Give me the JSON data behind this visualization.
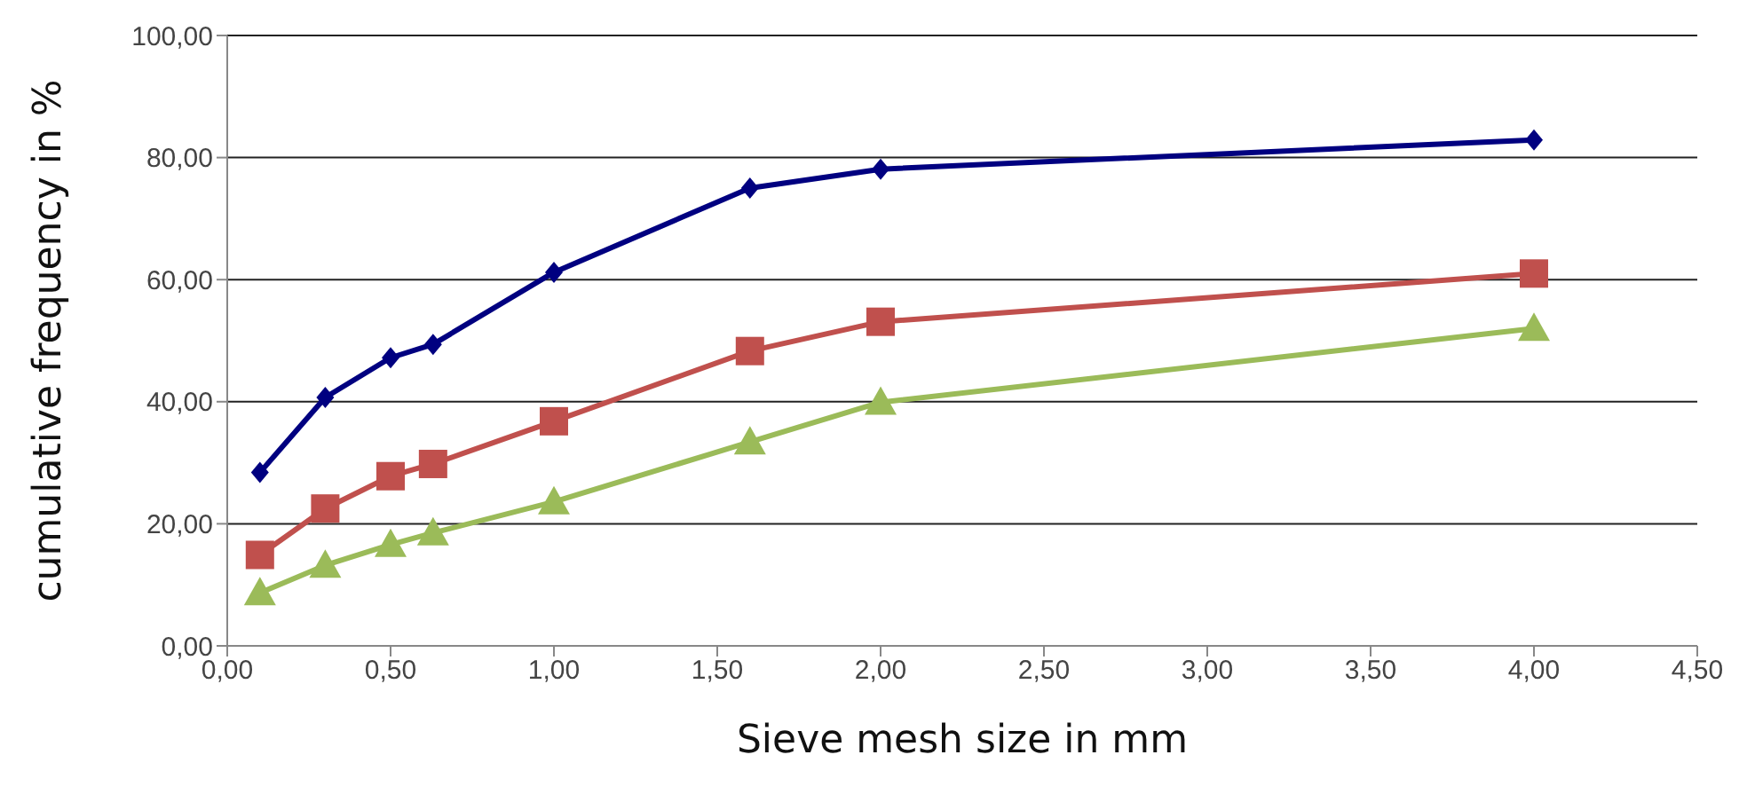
{
  "chart_data": {
    "type": "line",
    "xlabel": "Sieve mesh size in mm",
    "ylabel": "cumulative frequency in %",
    "x": [
      0.1,
      0.3,
      0.5,
      0.63,
      1.0,
      1.6,
      2.0,
      4.0
    ],
    "series": [
      {
        "color": "#000080",
        "marker": "diamond",
        "values": [
          28.4,
          40.7,
          47.2,
          49.4,
          61.2,
          75,
          78.1,
          82.9
        ]
      },
      {
        "color": "#c0504d",
        "marker": "square",
        "values": [
          14.9,
          22.5,
          27.8,
          29.8,
          36.8,
          48.3,
          53.1,
          61
        ]
      },
      {
        "color": "#9bbb59",
        "marker": "triangle",
        "values": [
          8.7,
          13.2,
          16.6,
          18.5,
          23.6,
          33.4,
          39.9,
          52
        ]
      }
    ],
    "xlim": [
      0,
      4.5
    ],
    "xticks": [
      {
        "value": 0,
        "label": "0,00"
      },
      {
        "value": 0.5,
        "label": "0,50"
      },
      {
        "value": 1,
        "label": "1,00"
      },
      {
        "value": 1.5,
        "label": "1,50"
      },
      {
        "value": 2,
        "label": "2,00"
      },
      {
        "value": 2.5,
        "label": "2,50"
      },
      {
        "value": 3,
        "label": "3,00"
      },
      {
        "value": 3.5,
        "label": "3,50"
      },
      {
        "value": 4,
        "label": "4,00"
      },
      {
        "value": 4.5,
        "label": "4,50"
      }
    ],
    "ylim": [
      0,
      100
    ],
    "yticks": [
      {
        "value": 0,
        "label": "0,00"
      },
      {
        "value": 20,
        "label": "20,00"
      },
      {
        "value": 40,
        "label": "40,00"
      },
      {
        "value": 60,
        "label": "60,00"
      },
      {
        "value": 80,
        "label": "80,00"
      },
      {
        "value": 100,
        "label": "100,00"
      }
    ],
    "grid": "y"
  }
}
